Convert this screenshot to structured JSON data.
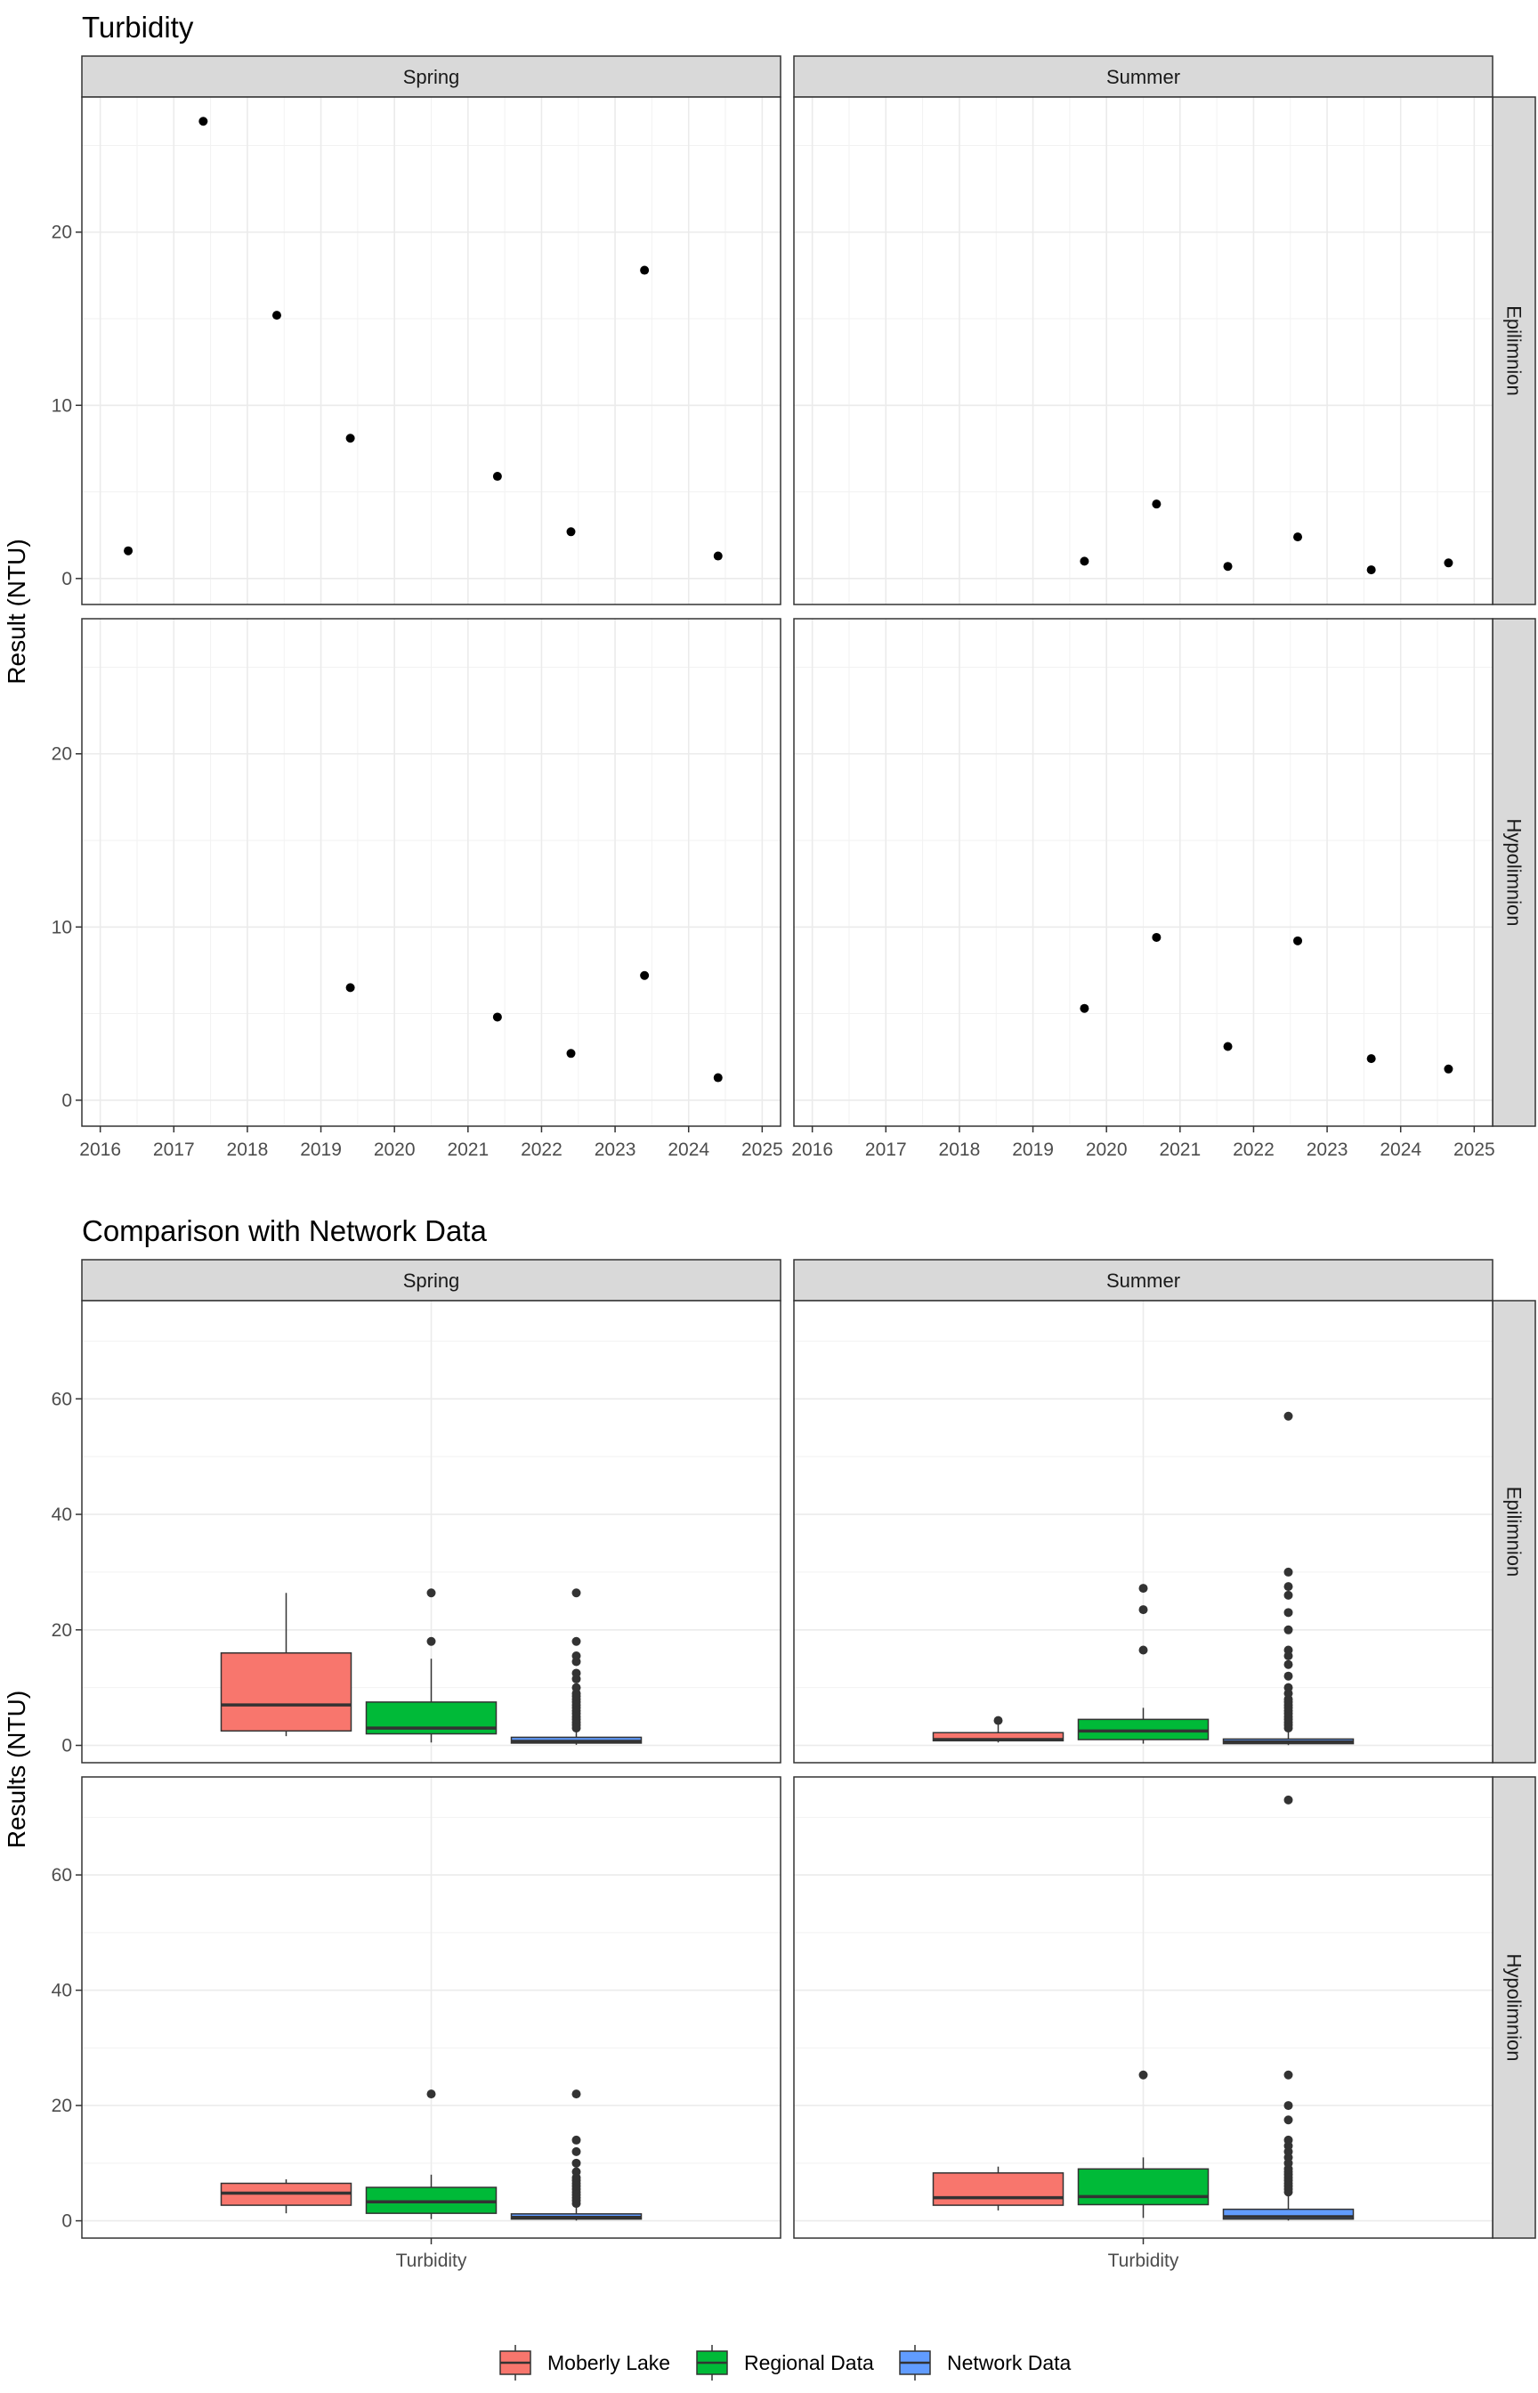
{
  "chart_data": [
    {
      "type": "scatter",
      "title": "Turbidity",
      "ylabel": "Result (NTU)",
      "xlabel": "",
      "xlim": [
        2015.75,
        2025.25
      ],
      "ylim": [
        -1.5,
        27.8
      ],
      "x_ticks": [
        2016,
        2017,
        2018,
        2019,
        2020,
        2021,
        2022,
        2023,
        2024,
        2025
      ],
      "x_tick_labels": [
        "2016",
        "2017",
        "2018",
        "2019",
        "2020",
        "2021",
        "2022",
        "2023",
        "2024",
        "2025"
      ],
      "y_ticks": [
        0,
        10,
        20
      ],
      "y_tick_labels": [
        "0",
        "10",
        "20"
      ],
      "col_facets": [
        "Spring",
        "Summer"
      ],
      "row_facets": [
        "Epilimnion",
        "Hypolimnion"
      ],
      "panels": [
        {
          "season": "Spring",
          "layer": "Epilimnion",
          "x": [
            2016.38,
            2017.4,
            2018.4,
            2019.4,
            2021.4,
            2022.4,
            2023.4,
            2024.4
          ],
          "y": [
            1.6,
            26.4,
            15.2,
            8.1,
            5.9,
            2.7,
            17.8,
            1.3
          ]
        },
        {
          "season": "Summer",
          "layer": "Epilimnion",
          "x": [
            2019.7,
            2020.68,
            2021.65,
            2022.6,
            2023.6,
            2024.65
          ],
          "y": [
            1.0,
            4.3,
            0.7,
            2.4,
            0.5,
            0.9
          ]
        },
        {
          "season": "Spring",
          "layer": "Hypolimnion",
          "x": [
            2019.4,
            2021.4,
            2022.4,
            2023.4,
            2024.4
          ],
          "y": [
            6.5,
            4.8,
            2.7,
            7.2,
            1.3
          ]
        },
        {
          "season": "Summer",
          "layer": "Hypolimnion",
          "x": [
            2019.7,
            2020.68,
            2021.65,
            2022.6,
            2023.6,
            2024.65
          ],
          "y": [
            5.3,
            9.4,
            3.1,
            9.2,
            2.4,
            1.8
          ]
        }
      ]
    },
    {
      "type": "box",
      "title": "Comparison with Network Data",
      "ylabel": "Results (NTU)",
      "xlabel": "",
      "category": "Turbidity",
      "ylim": [
        -3,
        77
      ],
      "y_ticks": [
        0,
        20,
        40,
        60
      ],
      "y_tick_labels": [
        "0",
        "20",
        "40",
        "60"
      ],
      "col_facets": [
        "Spring",
        "Summer"
      ],
      "row_facets": [
        "Epilimnion",
        "Hypolimnion"
      ],
      "legend": {
        "position": "bottom",
        "entries": [
          {
            "name": "Moberly Lake",
            "color": "#F8766D"
          },
          {
            "name": "Regional Data",
            "color": "#00BA38"
          },
          {
            "name": "Network Data",
            "color": "#619CFF"
          }
        ]
      },
      "panels": [
        {
          "season": "Spring",
          "layer": "Epilimnion",
          "boxes": [
            {
              "group": "Moberly Lake",
              "min": 1.6,
              "q1": 2.5,
              "median": 7.0,
              "q3": 16.0,
              "max": 26.4,
              "outliers": []
            },
            {
              "group": "Regional Data",
              "min": 0.5,
              "q1": 2.0,
              "median": 3.0,
              "q3": 7.5,
              "max": 15.0,
              "outliers": [
                18.0,
                26.4
              ]
            },
            {
              "group": "Network Data",
              "min": 0.1,
              "q1": 0.4,
              "median": 0.7,
              "q3": 1.4,
              "max": 2.8,
              "outliers": [
                3.0,
                3.5,
                4.0,
                4.5,
                5.0,
                5.5,
                6.0,
                6.5,
                7.0,
                7.5,
                8.0,
                8.5,
                9.0,
                10.0,
                11.5,
                12.5,
                14.5,
                15.5,
                18.0,
                26.4
              ]
            }
          ]
        },
        {
          "season": "Summer",
          "layer": "Epilimnion",
          "boxes": [
            {
              "group": "Moberly Lake",
              "min": 0.5,
              "q1": 0.8,
              "median": 1.0,
              "q3": 2.2,
              "max": 4.3,
              "outliers": [
                4.3
              ]
            },
            {
              "group": "Regional Data",
              "min": 0.3,
              "q1": 1.0,
              "median": 2.5,
              "q3": 4.5,
              "max": 6.5,
              "outliers": [
                16.5,
                23.5,
                27.2
              ]
            },
            {
              "group": "Network Data",
              "min": 0.05,
              "q1": 0.3,
              "median": 0.6,
              "q3": 1.1,
              "max": 2.5,
              "outliers": [
                3.0,
                3.5,
                4.0,
                4.5,
                5.0,
                5.5,
                6.0,
                6.5,
                7.0,
                7.5,
                8.0,
                9.0,
                10.0,
                12.0,
                14.0,
                15.5,
                16.5,
                20.0,
                23.0,
                26.0,
                27.5,
                30.0,
                57.0
              ]
            }
          ]
        },
        {
          "season": "Spring",
          "layer": "Hypolimnion",
          "boxes": [
            {
              "group": "Moberly Lake",
              "min": 1.3,
              "q1": 2.7,
              "median": 4.8,
              "q3": 6.5,
              "max": 7.2,
              "outliers": []
            },
            {
              "group": "Regional Data",
              "min": 0.3,
              "q1": 1.3,
              "median": 3.3,
              "q3": 5.8,
              "max": 8.0,
              "outliers": [
                22.0
              ]
            },
            {
              "group": "Network Data",
              "min": 0.05,
              "q1": 0.3,
              "median": 0.6,
              "q3": 1.2,
              "max": 2.5,
              "outliers": [
                3.0,
                3.5,
                4.0,
                4.5,
                5.0,
                5.5,
                6.0,
                6.5,
                7.0,
                7.5,
                8.5,
                10.0,
                12.0,
                14.0,
                22.0
              ]
            }
          ]
        },
        {
          "season": "Summer",
          "layer": "Hypolimnion",
          "boxes": [
            {
              "group": "Moberly Lake",
              "min": 1.8,
              "q1": 2.7,
              "median": 4.0,
              "q3": 8.3,
              "max": 9.4,
              "outliers": []
            },
            {
              "group": "Regional Data",
              "min": 0.5,
              "q1": 2.8,
              "median": 4.2,
              "q3": 9.0,
              "max": 11.0,
              "outliers": [
                25.3
              ]
            },
            {
              "group": "Network Data",
              "min": 0.05,
              "q1": 0.3,
              "median": 0.7,
              "q3": 2.0,
              "max": 4.5,
              "outliers": [
                5.0,
                5.5,
                6.0,
                6.5,
                7.0,
                7.5,
                8.0,
                8.5,
                9.0,
                10.0,
                11.0,
                12.0,
                13.0,
                14.0,
                17.5,
                20.0,
                25.3,
                73.0
              ]
            }
          ]
        }
      ]
    }
  ]
}
